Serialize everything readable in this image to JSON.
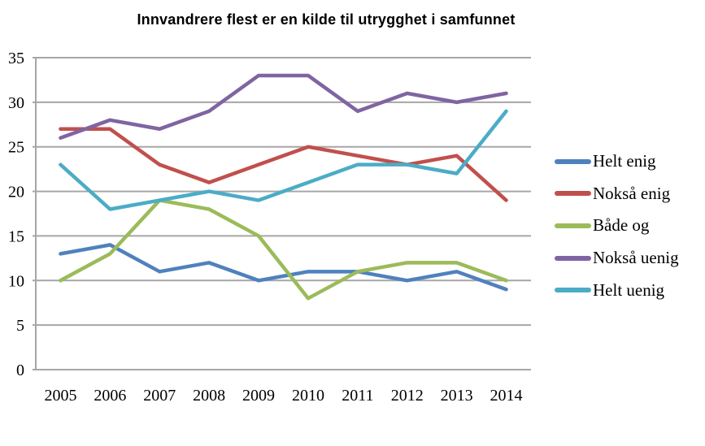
{
  "chart_data": {
    "type": "line",
    "title": "Innvandrere flest er en kilde til utrygghet i samfunnet",
    "xlabel": "",
    "ylabel": "",
    "categories": [
      "2005",
      "2006",
      "2007",
      "2008",
      "2009",
      "2010",
      "2011",
      "2012",
      "2013",
      "2014"
    ],
    "series": [
      {
        "name": "Helt enig",
        "color": "#4F81BD",
        "values": [
          13,
          14,
          11,
          12,
          10,
          11,
          11,
          10,
          11,
          9
        ]
      },
      {
        "name": "Nokså enig",
        "color": "#C0504D",
        "values": [
          27,
          27,
          23,
          21,
          23,
          25,
          24,
          23,
          24,
          19
        ]
      },
      {
        "name": "Både og",
        "color": "#9BBB59",
        "values": [
          10,
          13,
          19,
          18,
          15,
          8,
          11,
          12,
          12,
          10
        ]
      },
      {
        "name": "Nokså uenig",
        "color": "#8064A2",
        "values": [
          26,
          28,
          27,
          29,
          33,
          33,
          29,
          31,
          30,
          31
        ]
      },
      {
        "name": "Helt uenig",
        "color": "#4BACC6",
        "values": [
          23,
          18,
          19,
          20,
          19,
          21,
          23,
          23,
          22,
          29
        ]
      }
    ],
    "ylim": [
      0,
      35
    ],
    "ytick_step": 5,
    "grid": true,
    "gridline_color": "#A6A6A6",
    "legend_position": "right"
  }
}
